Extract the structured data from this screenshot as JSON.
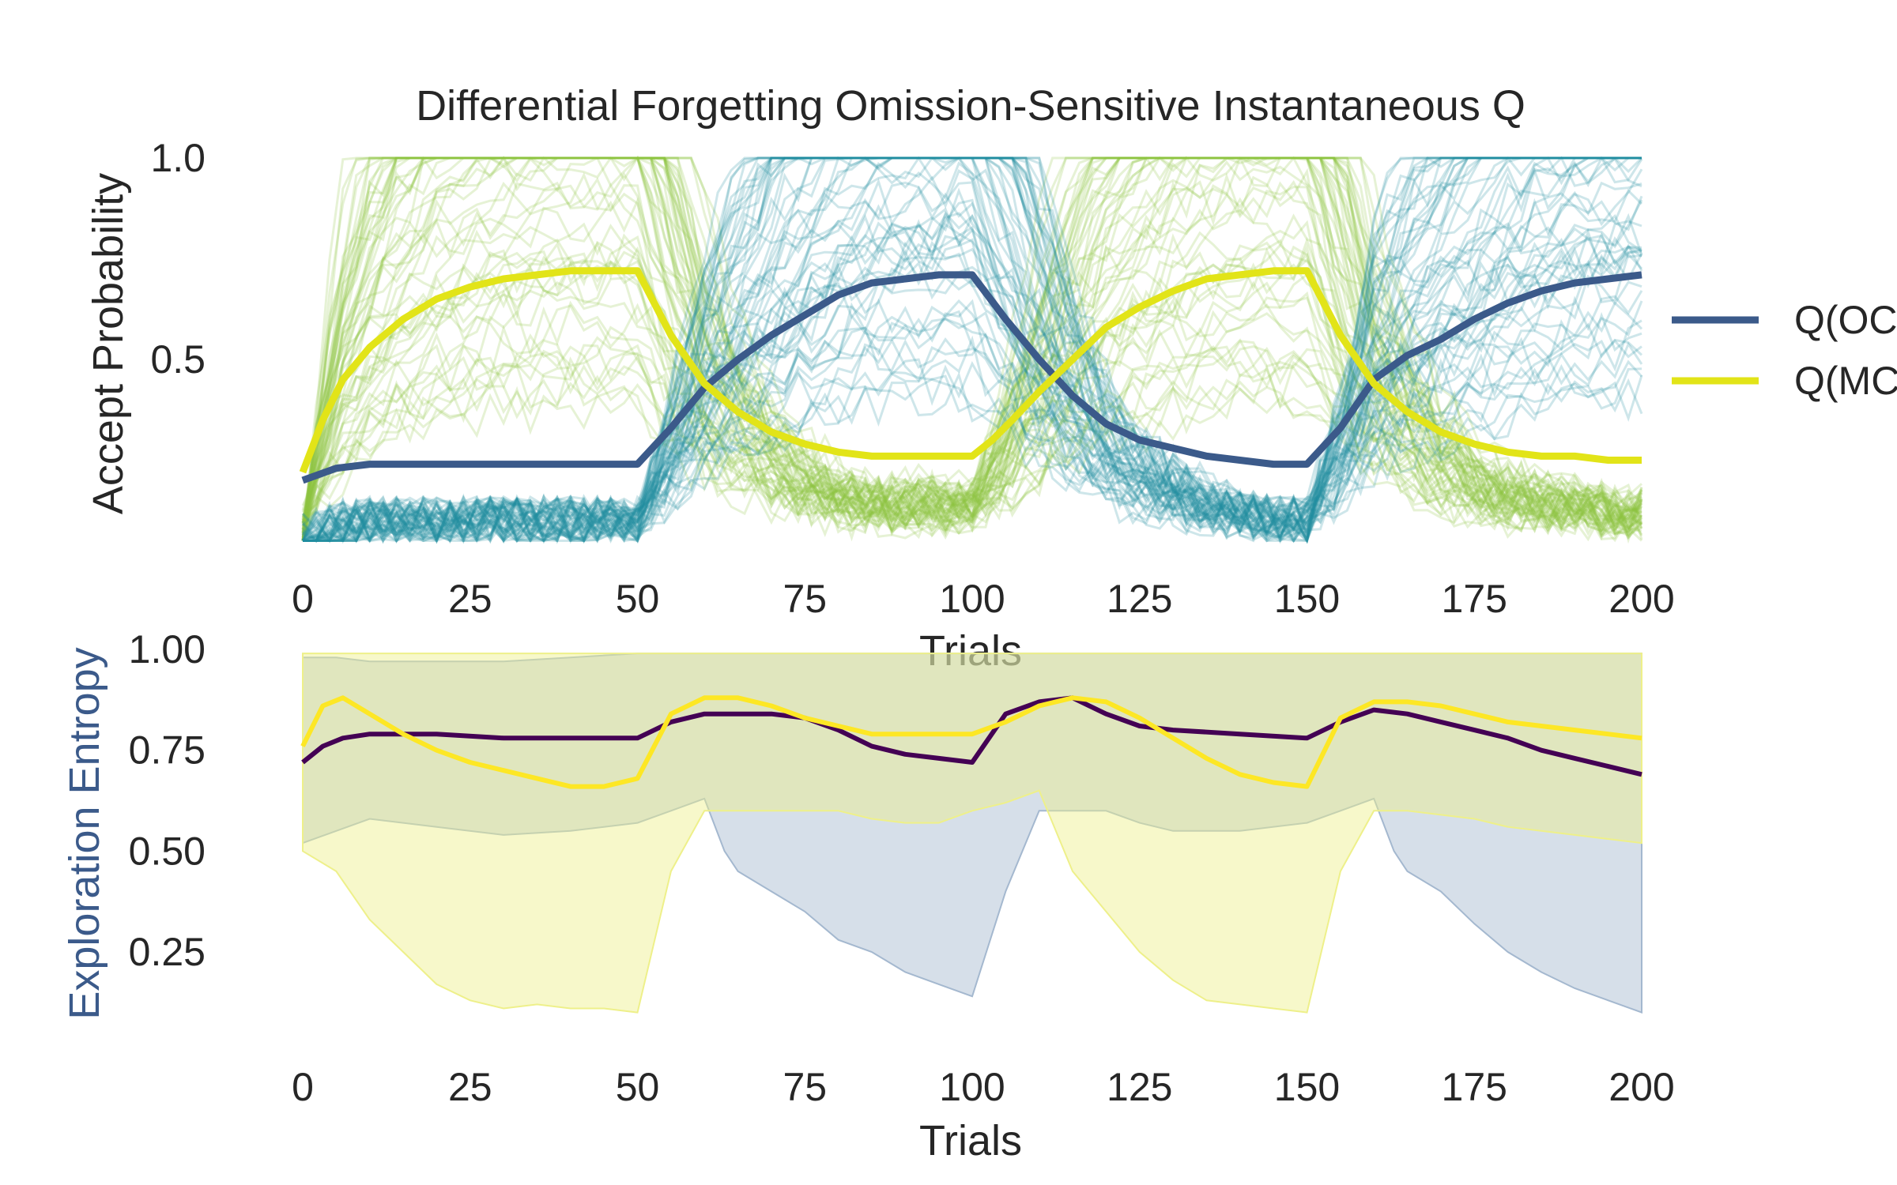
{
  "chart_data": [
    {
      "type": "line",
      "title": "Differential Forgetting Omission-Sensitive Instantaneous Q",
      "xlabel": "Trials",
      "ylabel": "Accept Probability",
      "xlim": [
        0,
        200
      ],
      "ylim": [
        0.0,
        1.0
      ],
      "xticks": [
        "0",
        "25",
        "50",
        "75",
        "100",
        "125",
        "150",
        "175",
        "200"
      ],
      "yticks": [
        "0.5",
        "1.0"
      ],
      "grid": false,
      "legend": "right",
      "background_traces": {
        "description_colors": [
          "#8cc63f",
          "#1f8f9f"
        ],
        "count_per_group": 60,
        "range": [
          0.05,
          1.0
        ]
      },
      "series": [
        {
          "name": "Q(OC",
          "color": "#3b5a8a",
          "x": [
            0,
            5,
            10,
            20,
            30,
            40,
            50,
            55,
            60,
            65,
            70,
            75,
            80,
            85,
            90,
            95,
            100,
            105,
            110,
            115,
            120,
            125,
            130,
            135,
            140,
            145,
            150,
            155,
            160,
            165,
            170,
            175,
            180,
            185,
            190,
            195,
            200
          ],
          "values": [
            0.2,
            0.23,
            0.24,
            0.24,
            0.24,
            0.24,
            0.24,
            0.33,
            0.43,
            0.5,
            0.56,
            0.61,
            0.66,
            0.69,
            0.7,
            0.71,
            0.71,
            0.6,
            0.5,
            0.41,
            0.34,
            0.3,
            0.28,
            0.26,
            0.25,
            0.24,
            0.24,
            0.33,
            0.45,
            0.51,
            0.55,
            0.6,
            0.64,
            0.67,
            0.69,
            0.7,
            0.71
          ]
        },
        {
          "name": "Q(MC",
          "color": "#e2e418",
          "x": [
            0,
            3,
            6,
            10,
            15,
            20,
            25,
            30,
            35,
            40,
            45,
            50,
            55,
            60,
            65,
            70,
            75,
            80,
            85,
            90,
            95,
            100,
            103,
            106,
            110,
            115,
            120,
            125,
            130,
            135,
            140,
            145,
            150,
            155,
            160,
            165,
            170,
            175,
            180,
            185,
            190,
            195,
            200
          ],
          "values": [
            0.22,
            0.35,
            0.45,
            0.53,
            0.6,
            0.65,
            0.68,
            0.7,
            0.71,
            0.72,
            0.72,
            0.72,
            0.56,
            0.44,
            0.37,
            0.32,
            0.29,
            0.27,
            0.26,
            0.26,
            0.26,
            0.26,
            0.3,
            0.35,
            0.42,
            0.5,
            0.58,
            0.63,
            0.67,
            0.7,
            0.71,
            0.72,
            0.72,
            0.56,
            0.44,
            0.37,
            0.32,
            0.29,
            0.27,
            0.26,
            0.26,
            0.25,
            0.25
          ]
        }
      ]
    },
    {
      "type": "area",
      "title": "",
      "xlabel": "Trials",
      "ylabel": "Exploration Entropy",
      "ylabel_color": "#3b5a8a",
      "xlim": [
        0,
        200
      ],
      "ylim": [
        0.0,
        1.0
      ],
      "xticks": [
        "0",
        "25",
        "50",
        "75",
        "100",
        "125",
        "150",
        "175",
        "200"
      ],
      "yticks": [
        "0.25",
        "0.50",
        "0.75",
        "1.00"
      ],
      "grid": false,
      "bands": [
        {
          "color": "#a4b8cf",
          "x": [
            0,
            5,
            10,
            20,
            30,
            40,
            50,
            55,
            60,
            63,
            65,
            70,
            75,
            80,
            85,
            90,
            95,
            100,
            105,
            110,
            115,
            120,
            125,
            130,
            140,
            150,
            155,
            160,
            163,
            165,
            170,
            175,
            180,
            185,
            190,
            195,
            200
          ],
          "lower": [
            0.52,
            0.55,
            0.58,
            0.56,
            0.54,
            0.55,
            0.57,
            0.6,
            0.63,
            0.5,
            0.45,
            0.4,
            0.35,
            0.28,
            0.25,
            0.2,
            0.17,
            0.14,
            0.4,
            0.6,
            0.6,
            0.6,
            0.57,
            0.55,
            0.55,
            0.57,
            0.6,
            0.63,
            0.5,
            0.45,
            0.4,
            0.32,
            0.25,
            0.2,
            0.16,
            0.13,
            0.1
          ],
          "upper": [
            0.98,
            0.98,
            0.97,
            0.97,
            0.97,
            0.98,
            0.99,
            0.99,
            0.99,
            0.99,
            0.99,
            0.99,
            0.99,
            0.99,
            0.99,
            0.99,
            0.99,
            0.99,
            0.99,
            0.99,
            0.99,
            0.99,
            0.99,
            0.99,
            0.99,
            0.99,
            0.99,
            0.99,
            0.99,
            0.99,
            0.99,
            0.99,
            0.99,
            0.99,
            0.99,
            0.99,
            0.99
          ]
        },
        {
          "color": "#eef08a",
          "x": [
            0,
            5,
            10,
            15,
            20,
            25,
            30,
            35,
            40,
            45,
            50,
            55,
            60,
            65,
            70,
            75,
            80,
            85,
            90,
            95,
            100,
            105,
            110,
            115,
            120,
            125,
            130,
            135,
            140,
            145,
            150,
            155,
            160,
            165,
            170,
            175,
            180,
            185,
            190,
            195,
            200
          ],
          "lower": [
            0.5,
            0.45,
            0.33,
            0.25,
            0.17,
            0.13,
            0.11,
            0.12,
            0.11,
            0.11,
            0.1,
            0.45,
            0.6,
            0.6,
            0.6,
            0.6,
            0.6,
            0.58,
            0.57,
            0.57,
            0.6,
            0.62,
            0.65,
            0.45,
            0.35,
            0.25,
            0.18,
            0.13,
            0.12,
            0.11,
            0.1,
            0.45,
            0.6,
            0.6,
            0.59,
            0.58,
            0.56,
            0.55,
            0.54,
            0.53,
            0.52
          ],
          "upper": [
            0.99,
            0.99,
            0.99,
            0.99,
            0.99,
            0.99,
            0.99,
            0.99,
            0.99,
            0.99,
            0.99,
            0.99,
            0.99,
            0.99,
            0.99,
            0.99,
            0.99,
            0.99,
            0.99,
            0.99,
            0.99,
            0.99,
            0.99,
            0.99,
            0.99,
            0.99,
            0.99,
            0.99,
            0.99,
            0.99,
            0.99,
            0.99,
            0.99,
            0.99,
            0.99,
            0.99,
            0.99,
            0.99,
            0.99,
            0.99,
            0.99
          ]
        }
      ],
      "series": [
        {
          "color": "#440154",
          "x": [
            0,
            3,
            6,
            10,
            15,
            20,
            30,
            40,
            50,
            55,
            60,
            65,
            70,
            75,
            80,
            85,
            90,
            95,
            100,
            105,
            110,
            115,
            120,
            125,
            130,
            140,
            150,
            155,
            160,
            165,
            170,
            175,
            180,
            185,
            190,
            195,
            200
          ],
          "values": [
            0.72,
            0.76,
            0.78,
            0.79,
            0.79,
            0.79,
            0.78,
            0.78,
            0.78,
            0.82,
            0.84,
            0.84,
            0.84,
            0.83,
            0.8,
            0.76,
            0.74,
            0.73,
            0.72,
            0.84,
            0.87,
            0.88,
            0.84,
            0.81,
            0.8,
            0.79,
            0.78,
            0.82,
            0.85,
            0.84,
            0.82,
            0.8,
            0.78,
            0.75,
            0.73,
            0.71,
            0.69
          ]
        },
        {
          "color": "#fde725",
          "x": [
            0,
            3,
            6,
            10,
            15,
            20,
            25,
            30,
            35,
            40,
            45,
            50,
            55,
            60,
            65,
            70,
            75,
            80,
            85,
            90,
            95,
            100,
            105,
            110,
            115,
            120,
            125,
            130,
            135,
            140,
            145,
            150,
            155,
            160,
            165,
            170,
            175,
            180,
            185,
            190,
            195,
            200
          ],
          "values": [
            0.76,
            0.86,
            0.88,
            0.84,
            0.79,
            0.75,
            0.72,
            0.7,
            0.68,
            0.66,
            0.66,
            0.68,
            0.84,
            0.88,
            0.88,
            0.86,
            0.83,
            0.81,
            0.79,
            0.79,
            0.79,
            0.79,
            0.82,
            0.86,
            0.88,
            0.87,
            0.83,
            0.78,
            0.73,
            0.69,
            0.67,
            0.66,
            0.83,
            0.87,
            0.87,
            0.86,
            0.84,
            0.82,
            0.81,
            0.8,
            0.79,
            0.78
          ]
        }
      ]
    }
  ]
}
